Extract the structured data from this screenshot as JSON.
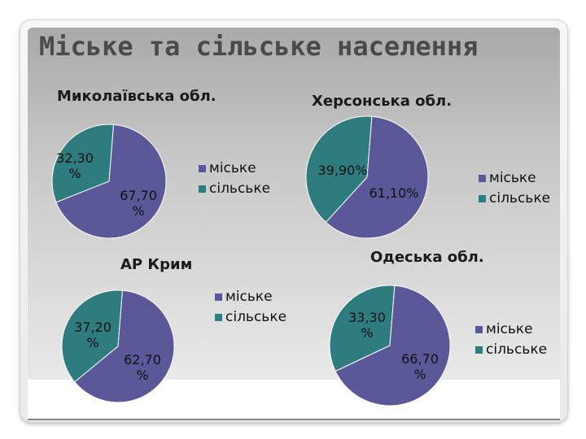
{
  "slide": {
    "title": "Міське та сільське населення"
  },
  "colors": {
    "urban": "#5a5898",
    "rural": "#2f7c7f"
  },
  "chart_data": [
    {
      "type": "pie",
      "title": "Миколаївська обл.",
      "legend": [
        "міське",
        "сільське"
      ],
      "values": [
        67.7,
        32.3
      ],
      "labels": [
        "67,70 %",
        "32,30 %"
      ]
    },
    {
      "type": "pie",
      "title": "Херсонська обл.",
      "legend": [
        "міське",
        "сільське"
      ],
      "values": [
        61.1,
        39.9
      ],
      "labels": [
        "61,10%",
        "39,90%"
      ]
    },
    {
      "type": "pie",
      "title": "АР Крим",
      "legend": [
        "міське",
        "сільське"
      ],
      "values": [
        62.7,
        37.2
      ],
      "labels": [
        "62,70 %",
        "37,20 %"
      ]
    },
    {
      "type": "pie",
      "title": "Одеська обл.",
      "legend": [
        "міське",
        "сільське"
      ],
      "values": [
        66.7,
        33.3
      ],
      "labels": [
        "66,70 %",
        "33,30 %"
      ]
    }
  ]
}
